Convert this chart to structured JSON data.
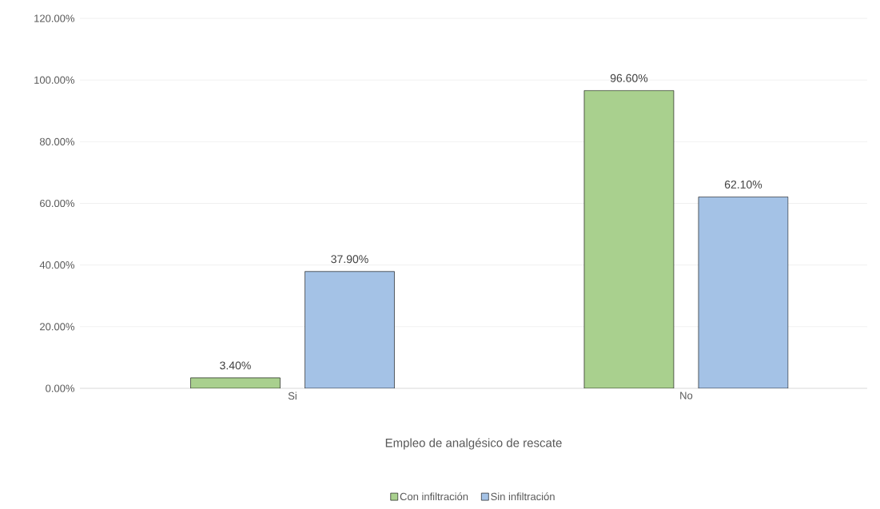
{
  "chart_data": {
    "type": "bar",
    "xlabel": "Empleo de analgésico de rescate",
    "categories": [
      "Si",
      "No"
    ],
    "series": [
      {
        "name": "Con infiltración",
        "color": "#a9d08e",
        "values": [
          3.4,
          96.6
        ],
        "value_labels": [
          "3.40%",
          "96.60%"
        ]
      },
      {
        "name": "Sin infiltración",
        "color": "#a4c2e6",
        "values": [
          37.9,
          62.1
        ],
        "value_labels": [
          "37.90%",
          "62.10%"
        ]
      }
    ],
    "ylim": [
      0,
      120
    ],
    "yticks": [
      {
        "value": 0,
        "label": "0.00%"
      },
      {
        "value": 20,
        "label": "20.00%"
      },
      {
        "value": 40,
        "label": "40.00%"
      },
      {
        "value": 60,
        "label": "60.00%"
      },
      {
        "value": 80,
        "label": "80.00%"
      },
      {
        "value": 100,
        "label": "100.00%"
      },
      {
        "value": 120,
        "label": "120.00%"
      }
    ],
    "grid": "y",
    "legend": "bottom"
  }
}
